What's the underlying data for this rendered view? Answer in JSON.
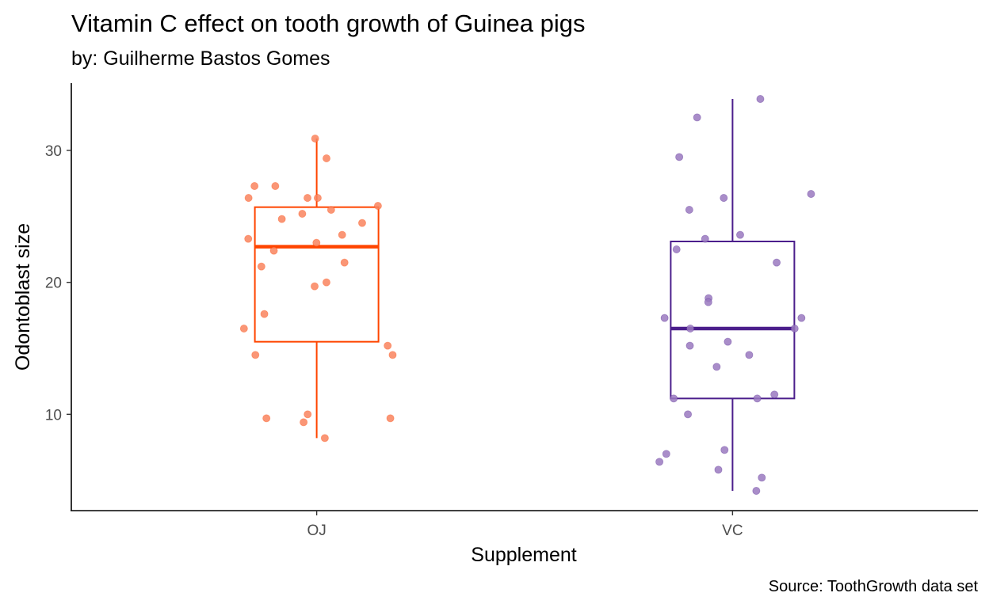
{
  "chart_data": {
    "type": "box",
    "title": "Vitamin C effect on tooth growth of Guinea pigs",
    "subtitle": "by: Guilherme Bastos Gomes",
    "caption": "Source: ToothGrowth data set",
    "xlabel": "Supplement",
    "ylabel": "Odontoblast size",
    "categories": [
      "OJ",
      "VC"
    ],
    "ylim": [
      2.7,
      35.1
    ],
    "yticks": [
      10,
      20,
      30
    ],
    "grid": false,
    "colors": {
      "OJ": "#FF4500",
      "VC": "#4B1E8C",
      "OJ_points": "#F9845E",
      "VC_points": "#9A79C0"
    },
    "boxes": [
      {
        "category": "OJ",
        "min": 8.2,
        "q1": 15.5,
        "median": 22.7,
        "q3": 25.7,
        "max": 30.9
      },
      {
        "category": "VC",
        "min": 4.2,
        "q1": 11.2,
        "median": 16.5,
        "q3": 23.1,
        "max": 33.9
      }
    ],
    "points": [
      {
        "category": "OJ",
        "values": [
          30.9,
          29.4,
          27.3,
          27.3,
          26.4,
          26.4,
          26.4,
          25.8,
          25.5,
          25.2,
          24.8,
          24.5,
          23.6,
          23.3,
          23.0,
          22.4,
          21.5,
          21.2,
          20.0,
          19.7,
          17.6,
          16.5,
          15.2,
          14.5,
          14.5,
          10.0,
          9.7,
          9.7,
          9.4,
          8.2
        ]
      },
      {
        "category": "VC",
        "values": [
          33.9,
          32.5,
          29.5,
          26.7,
          26.4,
          25.5,
          23.6,
          23.3,
          22.5,
          21.5,
          18.8,
          18.5,
          17.3,
          17.3,
          16.5,
          16.5,
          15.5,
          15.2,
          14.5,
          13.6,
          11.5,
          11.2,
          11.2,
          10.0,
          7.3,
          7.0,
          6.4,
          5.8,
          5.2,
          4.2
        ]
      }
    ]
  }
}
